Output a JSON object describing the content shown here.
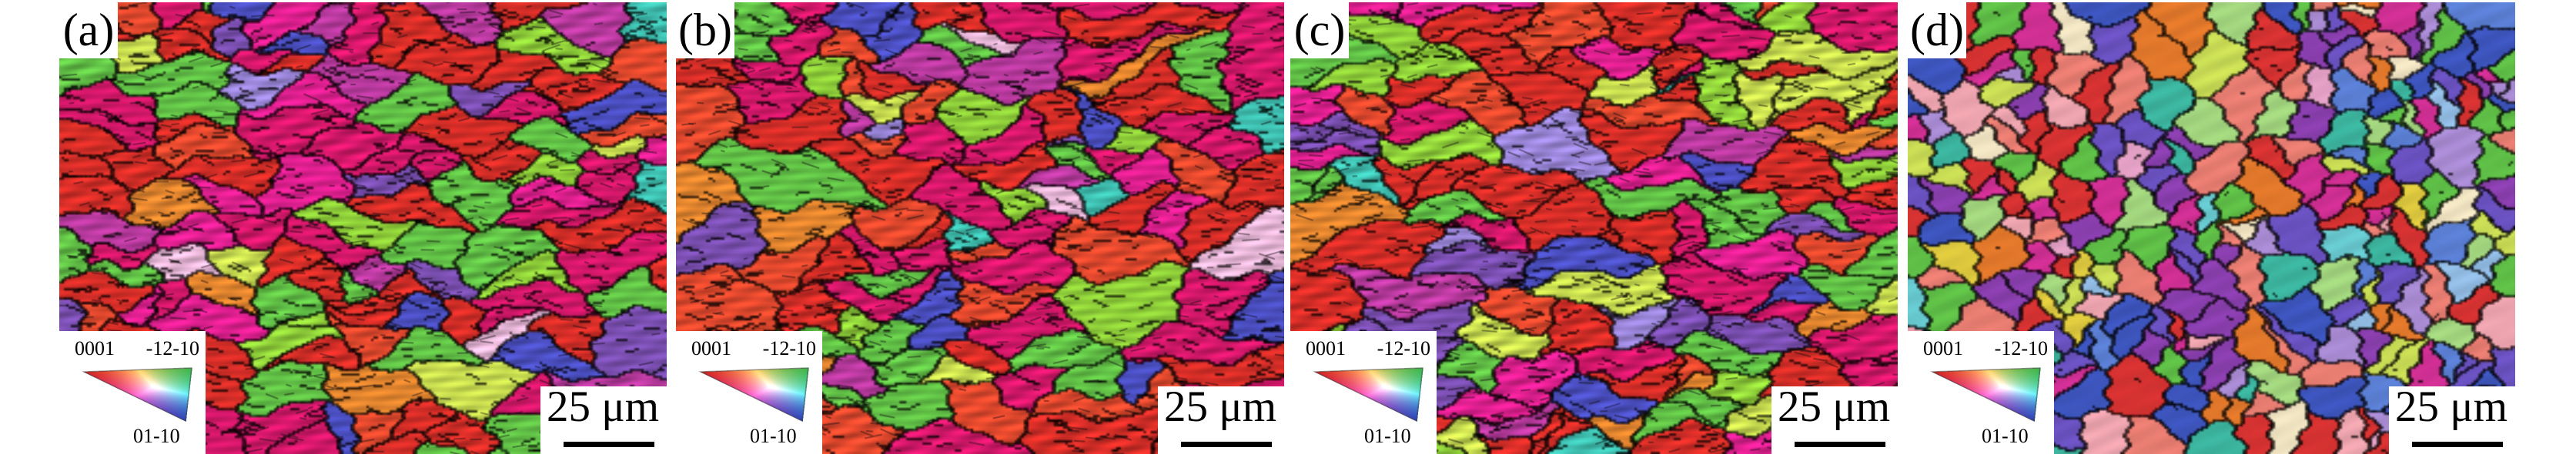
{
  "figure": {
    "description": "EBSD inverse pole figure (IPF) orientation maps, four panels",
    "panel_count": 4
  },
  "panels": [
    {
      "id": "a",
      "label": "(a)",
      "scale_label": "25 μm",
      "style": "deformed",
      "seed": 11,
      "grains": 135,
      "aniso": 2.2
    },
    {
      "id": "b",
      "label": "(b)",
      "scale_label": "25 μm",
      "style": "deformed",
      "seed": 27,
      "grains": 122,
      "aniso": 2.1
    },
    {
      "id": "c",
      "label": "(c)",
      "scale_label": "25 μm",
      "style": "deformed",
      "seed": 43,
      "grains": 140,
      "aniso": 2.2
    },
    {
      "id": "d",
      "label": "(d)",
      "scale_label": "25 μm",
      "style": "recrystallized",
      "seed": 58,
      "grains": 290,
      "aniso": 1.05
    }
  ],
  "legend": {
    "pole_top_left": "0001",
    "pole_top_right": "-12-10",
    "pole_bottom_right": "01-10",
    "vertex_colors": {
      "pole_0001": "#d42020",
      "pole_m12m10": "#3cb44a",
      "pole_01m10": "#2a40b4"
    }
  },
  "style": {
    "background": "#ffffff",
    "boundary_color": "#1a1a1a",
    "text_color": "#000000",
    "palettes": {
      "deformed": [
        [
          "#d62e28",
          22
        ],
        [
          "#e2492e",
          8
        ],
        [
          "#d4186a",
          13
        ],
        [
          "#e02090",
          6
        ],
        [
          "#b83a9e",
          6
        ],
        [
          "#62c147",
          12
        ],
        [
          "#8fcf3a",
          7
        ],
        [
          "#c8dc50",
          4
        ],
        [
          "#7a4fb0",
          6
        ],
        [
          "#4b4fc0",
          6
        ],
        [
          "#3fbfb0",
          3
        ],
        [
          "#e2852f",
          3
        ],
        [
          "#e8b7d8",
          2
        ],
        [
          "#9a86d8",
          2
        ]
      ],
      "recrystallized": [
        [
          "#d63232",
          10
        ],
        [
          "#e87d72",
          6
        ],
        [
          "#eda4ae",
          4
        ],
        [
          "#cf2f93",
          7
        ],
        [
          "#8a3fae",
          8
        ],
        [
          "#6a52c0",
          6
        ],
        [
          "#3d55bd",
          8
        ],
        [
          "#5b7fd4",
          4
        ],
        [
          "#92bce4",
          3
        ],
        [
          "#a88ad2",
          4
        ],
        [
          "#5fbf47",
          8
        ],
        [
          "#a2d57e",
          4
        ],
        [
          "#c9dc55",
          3
        ],
        [
          "#3cb49e",
          3
        ],
        [
          "#67c9cf",
          2
        ],
        [
          "#e2782b",
          5
        ],
        [
          "#ddc83e",
          3
        ],
        [
          "#efe3c1",
          2
        ],
        [
          "#e3a0c5",
          3
        ]
      ]
    }
  }
}
